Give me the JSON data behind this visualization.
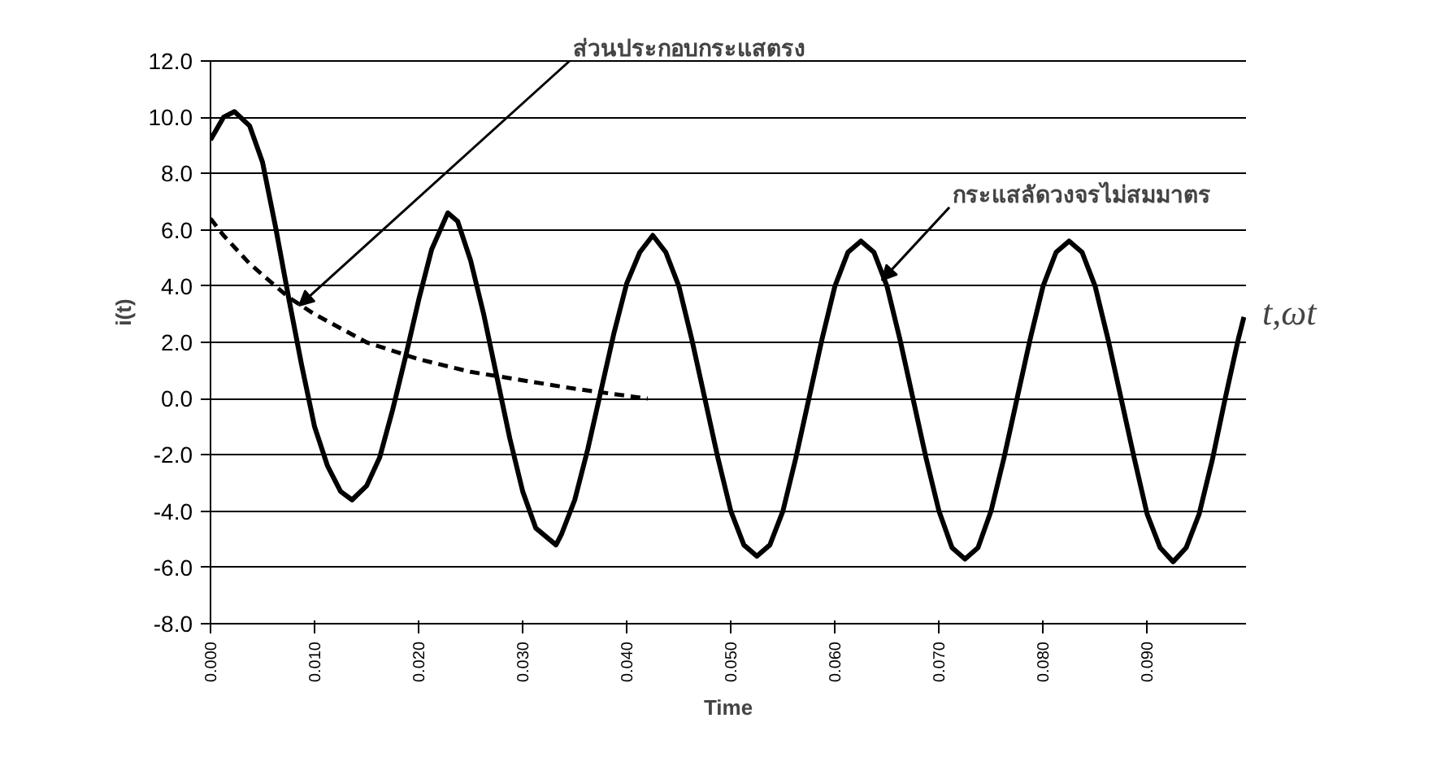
{
  "chart_data": {
    "type": "line",
    "xlabel": "Time",
    "ylabel": "i(t)",
    "xlim": [
      0,
      0.0995
    ],
    "ylim": [
      -8,
      12
    ],
    "xticks": [
      {
        "value": 0,
        "label": "0.000"
      },
      {
        "value": 0.01,
        "label": "0.010"
      },
      {
        "value": 0.02,
        "label": "0.020"
      },
      {
        "value": 0.03,
        "label": "0.030"
      },
      {
        "value": 0.04,
        "label": "0.040"
      },
      {
        "value": 0.05,
        "label": "0.050"
      },
      {
        "value": 0.06,
        "label": "0.060"
      },
      {
        "value": 0.07,
        "label": "0.070"
      },
      {
        "value": 0.08,
        "label": "0.080"
      },
      {
        "value": 0.09,
        "label": "0.090"
      }
    ],
    "yticks": [
      {
        "value": -8,
        "label": "-8.0"
      },
      {
        "value": -6,
        "label": "-6.0"
      },
      {
        "value": -4,
        "label": "-4.0"
      },
      {
        "value": -2,
        "label": "-2.0"
      },
      {
        "value": 0,
        "label": "0.0"
      },
      {
        "value": 2,
        "label": "2.0"
      },
      {
        "value": 4,
        "label": "4.0"
      },
      {
        "value": 6,
        "label": "6.0"
      },
      {
        "value": 8,
        "label": "8.0"
      },
      {
        "value": 10,
        "label": "10.0"
      },
      {
        "value": 12,
        "label": "12.0"
      }
    ],
    "grid": "y",
    "series": [
      {
        "color": "#000000",
        "line_style": "solid",
        "x": [
          0,
          0.00125,
          0.0023,
          0.00375,
          0.005,
          0.00625,
          0.0075,
          0.00875,
          0.01,
          0.01125,
          0.0125,
          0.0136,
          0.015,
          0.01625,
          0.0175,
          0.01875,
          0.02,
          0.02125,
          0.0228,
          0.02375,
          0.025,
          0.02625,
          0.0275,
          0.02875,
          0.03,
          0.03125,
          0.0332,
          0.03375,
          0.035,
          0.03625,
          0.0375,
          0.03875,
          0.04,
          0.04125,
          0.0425,
          0.04375,
          0.045,
          0.04625,
          0.0475,
          0.04875,
          0.05,
          0.05125,
          0.0525,
          0.05375,
          0.055,
          0.05625,
          0.0575,
          0.05875,
          0.06,
          0.06125,
          0.0625,
          0.06375,
          0.065,
          0.06625,
          0.0675,
          0.06875,
          0.07,
          0.07125,
          0.0725,
          0.07375,
          0.075,
          0.07625,
          0.0775,
          0.07875,
          0.08,
          0.08125,
          0.0825,
          0.08375,
          0.085,
          0.08625,
          0.0875,
          0.08875,
          0.09,
          0.09125,
          0.0925,
          0.09375,
          0.095,
          0.09625,
          0.0975,
          0.09875,
          0.0993
        ],
        "values": [
          9.2,
          10.0,
          10.2,
          9.7,
          8.4,
          6.1,
          3.6,
          1.2,
          -1.0,
          -2.4,
          -3.3,
          -3.6,
          -3.1,
          -2.1,
          -0.4,
          1.5,
          3.5,
          5.3,
          6.6,
          6.3,
          4.9,
          3.0,
          0.8,
          -1.4,
          -3.3,
          -4.6,
          -5.2,
          -4.8,
          -3.6,
          -1.8,
          0.25,
          2.3,
          4.1,
          5.2,
          5.8,
          5.2,
          4.0,
          2.1,
          0,
          -2.1,
          -4.0,
          -5.2,
          -5.6,
          -5.2,
          -4.0,
          -2.1,
          0,
          2.1,
          4.0,
          5.2,
          5.6,
          5.2,
          4.0,
          2.1,
          0,
          -2.1,
          -4.0,
          -5.3,
          -5.7,
          -5.3,
          -4.0,
          -2.1,
          0,
          2.1,
          4.0,
          5.2,
          5.6,
          5.2,
          4.0,
          2.1,
          0,
          -2.1,
          -4.1,
          -5.3,
          -5.8,
          -5.3,
          -4.1,
          -2.2,
          0,
          2.1,
          2.9
        ]
      },
      {
        "color": "#000000",
        "line_style": "dashed",
        "x": [
          0,
          0.00125,
          0.0025,
          0.00375,
          0.005,
          0.00625,
          0.0075,
          0.00875,
          0.01,
          0.0125,
          0.015,
          0.0175,
          0.02,
          0.025,
          0.03,
          0.035,
          0.04,
          0.042
        ],
        "values": [
          6.4,
          5.8,
          5.3,
          4.8,
          4.4,
          4.0,
          3.6,
          3.3,
          3.0,
          2.5,
          2.0,
          1.7,
          1.4,
          0.95,
          0.65,
          0.35,
          0.1,
          0.0
        ]
      }
    ],
    "annotations": [
      {
        "text": "ส่วนประกอบกระแสตรง",
        "x": 0.0085,
        "y": 3.3
      },
      {
        "text": "กระแสลัดวงจรไม่สมมาตร",
        "x": 0.0645,
        "y": 4.2
      },
      "t,ωt"
    ]
  }
}
